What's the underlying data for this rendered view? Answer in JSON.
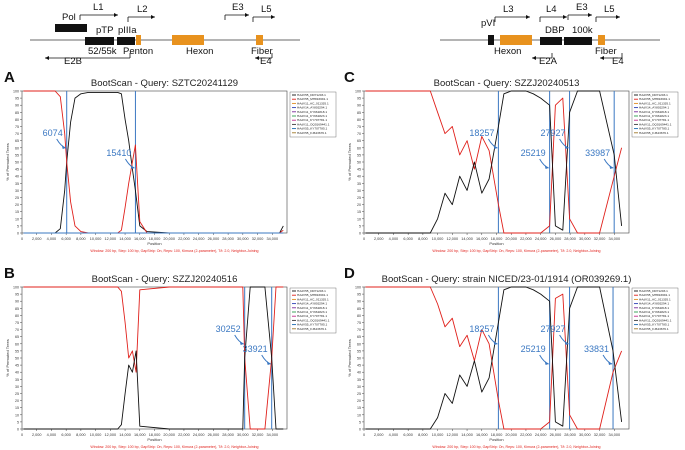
{
  "genome_maps": [
    {
      "labels": [
        {
          "text": "Pol",
          "x": 62,
          "y": 20
        },
        {
          "text": "L1",
          "x": 93,
          "y": 10
        },
        {
          "text": "L2",
          "x": 137,
          "y": 12
        },
        {
          "text": "pTP",
          "x": 96,
          "y": 33
        },
        {
          "text": "pIIIa",
          "x": 118,
          "y": 33
        },
        {
          "text": "52/55k",
          "x": 88,
          "y": 54
        },
        {
          "text": "Penton",
          "x": 123,
          "y": 54
        },
        {
          "text": "Hexon",
          "x": 186,
          "y": 54
        },
        {
          "text": "E2B",
          "x": 64,
          "y": 64
        },
        {
          "text": "E3",
          "x": 232,
          "y": 10
        },
        {
          "text": "L5",
          "x": 261,
          "y": 12
        },
        {
          "text": "Fiber",
          "x": 251,
          "y": 54
        },
        {
          "text": "E4",
          "x": 260,
          "y": 64
        }
      ]
    },
    {
      "labels": [
        {
          "text": "pVI",
          "x": 481,
          "y": 26
        },
        {
          "text": "L3",
          "x": 503,
          "y": 12
        },
        {
          "text": "L4",
          "x": 546,
          "y": 12
        },
        {
          "text": "E3",
          "x": 576,
          "y": 10
        },
        {
          "text": "L5",
          "x": 604,
          "y": 12
        },
        {
          "text": "DBP",
          "x": 545,
          "y": 33
        },
        {
          "text": "100k",
          "x": 572,
          "y": 33
        },
        {
          "text": "Hexon",
          "x": 494,
          "y": 54
        },
        {
          "text": "E2A",
          "x": 539,
          "y": 64
        },
        {
          "text": "Fiber",
          "x": 595,
          "y": 54
        },
        {
          "text": "E4",
          "x": 612,
          "y": 64
        }
      ]
    }
  ],
  "chart_data": [
    {
      "type": "line",
      "panel_letter": "A",
      "title": "BootScan - Query: SZTC20241129",
      "xlabel": "Position",
      "ylabel": "% of Permuted Trees",
      "xlim": [
        0,
        36000
      ],
      "ylim": [
        0,
        100
      ],
      "x_ticks": [
        "0",
        "2,000",
        "4,000",
        "6,000",
        "8,000",
        "10,000",
        "12,000",
        "14,000",
        "16,000",
        "18,000",
        "20,000",
        "22,000",
        "24,000",
        "26,000",
        "28,000",
        "30,000",
        "32,000",
        "34,000"
      ],
      "y_ticks": [
        "0",
        "5",
        "10",
        "15",
        "20",
        "25",
        "30",
        "35",
        "40",
        "45",
        "50",
        "55",
        "60",
        "65",
        "70",
        "75",
        "80",
        "85",
        "90",
        "95",
        "100"
      ],
      "breakpoints": [
        6074,
        15410
      ],
      "annotations": [
        "6074",
        "15410"
      ],
      "footer": "Window: 200 bp, Step: 100 bp, GapStrip: On, Reps: 100, Kimura (2-parameter), T/t: 2.0, Neighbor-Joining",
      "legend": [
        "HAdV55_DR71203.1",
        "HAdV55_MH816691.1",
        "HAdV11_AC_011335.1",
        "HAdV14_AY803294.1",
        "HAdV11_KY661818.1",
        "HAdV11_KY661823.1",
        "HAdV11_KY707781.1",
        "HAdV11_OQ0169441.1",
        "HAdV55_KY707785.1",
        "HAdV55_FJ643676.1"
      ],
      "series": [
        {
          "name": "black",
          "x": [
            200,
            1500,
            3000,
            4500,
            5200,
            5800,
            6074,
            6600,
            7200,
            8000,
            9000,
            10000,
            11000,
            12000,
            13000,
            13500,
            14000,
            14500,
            15000,
            15410,
            16000,
            17000,
            20000,
            25000,
            30000,
            35000,
            35500
          ],
          "y": [
            0,
            0,
            0,
            0,
            3,
            30,
            50,
            78,
            95,
            98,
            99,
            99,
            99,
            99,
            99,
            98,
            80,
            65,
            45,
            30,
            5,
            1,
            0,
            0,
            0,
            0,
            5
          ]
        },
        {
          "name": "red",
          "x": [
            200,
            1500,
            3000,
            4500,
            5200,
            5800,
            6074,
            6600,
            7200,
            8000,
            9000,
            10000,
            11000,
            12000,
            13000,
            13500,
            14000,
            14500,
            15000,
            15410,
            16000,
            17000,
            20000,
            25000,
            30000,
            35000,
            35500
          ],
          "y": [
            100,
            100,
            100,
            100,
            96,
            70,
            50,
            22,
            5,
            1,
            0,
            0,
            0,
            0,
            0,
            2,
            18,
            35,
            50,
            62,
            8,
            0,
            0,
            0,
            0,
            0,
            2
          ]
        },
        {
          "name": "blue",
          "x": [
            200,
            17000,
            24000,
            33000,
            35500
          ],
          "y": [
            0,
            0,
            0,
            0,
            0
          ]
        }
      ]
    },
    {
      "type": "line",
      "panel_letter": "B",
      "title": "BootScan - Query: SZZJ20240516",
      "xlabel": "Position",
      "ylabel": "% of Permuted Trees",
      "xlim": [
        0,
        36000
      ],
      "ylim": [
        0,
        100
      ],
      "x_ticks": [
        "0",
        "2,000",
        "4,000",
        "6,000",
        "8,000",
        "10,000",
        "12,000",
        "14,000",
        "16,000",
        "18,000",
        "20,000",
        "22,000",
        "24,000",
        "26,000",
        "28,000",
        "30,000",
        "32,000",
        "34,000"
      ],
      "y_ticks": [
        "0",
        "5",
        "10",
        "15",
        "20",
        "25",
        "30",
        "35",
        "40",
        "45",
        "50",
        "55",
        "60",
        "65",
        "70",
        "75",
        "80",
        "85",
        "90",
        "95",
        "100"
      ],
      "breakpoints": [
        30252,
        33921
      ],
      "annotations": [
        "30252",
        "33921"
      ],
      "footer": "Window: 200 bp, Step: 100 bp, GapStrip: On, Reps: 100, Kimura (2-parameter), T/t: 2.0, Neighbor-Joining",
      "legend": [
        "HAdV55_DR71203.1",
        "HAdV55_MH816691.1",
        "HAdV11_AC_011335.1",
        "HAdV14_AY803294.1",
        "HAdV11_KY661818.1",
        "HAdV11_KY661823.1",
        "HAdV11_KY707781.1",
        "HAdV11_OQ0169441.1",
        "HAdV55_KY707785.1",
        "HAdV55_FJ643676.1"
      ],
      "series": [
        {
          "name": "red",
          "x": [
            200,
            3000,
            6000,
            9000,
            11000,
            12000,
            13000,
            13500,
            14000,
            14500,
            15000,
            15500,
            16000,
            20000,
            25000,
            30000,
            30252,
            31000,
            32000,
            33000,
            33921,
            34500,
            35500
          ],
          "y": [
            100,
            100,
            100,
            100,
            100,
            100,
            100,
            97,
            75,
            50,
            55,
            40,
            98,
            100,
            100,
            100,
            50,
            0,
            0,
            0,
            50,
            100,
            100
          ]
        },
        {
          "name": "black",
          "x": [
            200,
            3000,
            6000,
            9000,
            11000,
            12000,
            13000,
            13500,
            14000,
            14500,
            15000,
            15500,
            16000,
            20000,
            25000,
            30000,
            30252,
            31000,
            32000,
            33000,
            33921,
            34500,
            35500
          ],
          "y": [
            0,
            0,
            0,
            0,
            0,
            0,
            0,
            3,
            25,
            45,
            40,
            55,
            2,
            0,
            0,
            0,
            50,
            100,
            100,
            100,
            50,
            0,
            0
          ]
        }
      ]
    },
    {
      "type": "line",
      "panel_letter": "C",
      "title": "BootScan - Query: SZZJ20240513",
      "xlabel": "Position",
      "ylabel": "% of Permuted Trees",
      "xlim": [
        0,
        36000
      ],
      "ylim": [
        0,
        100
      ],
      "x_ticks": [
        "0",
        "2,000",
        "4,000",
        "6,000",
        "8,000",
        "10,000",
        "12,000",
        "14,000",
        "16,000",
        "18,000",
        "20,000",
        "22,000",
        "24,000",
        "26,000",
        "28,000",
        "30,000",
        "32,000",
        "34,000"
      ],
      "y_ticks": [
        "0",
        "5",
        "10",
        "15",
        "20",
        "25",
        "30",
        "35",
        "40",
        "45",
        "50",
        "55",
        "60",
        "65",
        "70",
        "75",
        "80",
        "85",
        "90",
        "95",
        "100"
      ],
      "breakpoints": [
        18257,
        25219,
        27927,
        33987
      ],
      "annotations": [
        "18257",
        "25219",
        "27927",
        "33987"
      ],
      "footer": "Window: 200 bp, Step: 100 bp, GapStrip: On, Reps: 100, Kimura (2-parameter), T/t: 2.0, Neighbor-Joining",
      "legend": [
        "HAdV55_DR71203.1",
        "HAdV55_MH816691.1",
        "HAdV11_AC_011335.1",
        "HAdV14_AY803294.1",
        "HAdV11_KY661818.1",
        "HAdV11_KY661823.1",
        "HAdV11_KY707781.1",
        "HAdV11_OQ0169441.1",
        "HAdV55_KY707785.1",
        "HAdV55_FJ643676.1"
      ],
      "series": [
        {
          "name": "red",
          "x": [
            200,
            3000,
            6000,
            9000,
            10000,
            11000,
            12000,
            13000,
            14000,
            15000,
            16000,
            17000,
            18257,
            19000,
            20000,
            21000,
            22000,
            23000,
            24000,
            25219,
            26000,
            27000,
            27927,
            29000,
            30000,
            32000,
            33987,
            35000
          ],
          "y": [
            100,
            100,
            100,
            100,
            85,
            70,
            75,
            55,
            65,
            45,
            68,
            58,
            20,
            0,
            0,
            0,
            0,
            0,
            0,
            5,
            90,
            95,
            10,
            0,
            0,
            0,
            40,
            60
          ]
        },
        {
          "name": "black",
          "x": [
            200,
            3000,
            6000,
            9000,
            10000,
            11000,
            12000,
            13000,
            14000,
            15000,
            16000,
            17000,
            18257,
            19000,
            20000,
            21000,
            22000,
            23000,
            24000,
            25219,
            26000,
            27000,
            27927,
            29000,
            30000,
            32000,
            33987,
            35000
          ],
          "y": [
            0,
            0,
            0,
            0,
            10,
            28,
            20,
            40,
            30,
            50,
            28,
            38,
            75,
            98,
            100,
            100,
            100,
            98,
            95,
            90,
            5,
            2,
            85,
            100,
            100,
            100,
            55,
            5
          ]
        }
      ]
    },
    {
      "type": "line",
      "panel_letter": "D",
      "title": "BootScan - Query: strain NICED/23-01/1914 (OR039269.1)",
      "xlabel": "Position",
      "ylabel": "% of Permuted Trees",
      "xlim": [
        0,
        36000
      ],
      "ylim": [
        0,
        100
      ],
      "x_ticks": [
        "0",
        "2,000",
        "4,000",
        "6,000",
        "8,000",
        "10,000",
        "12,000",
        "14,000",
        "16,000",
        "18,000",
        "20,000",
        "22,000",
        "24,000",
        "26,000",
        "28,000",
        "30,000",
        "32,000",
        "34,000"
      ],
      "y_ticks": [
        "0",
        "5",
        "10",
        "15",
        "20",
        "25",
        "30",
        "35",
        "40",
        "45",
        "50",
        "55",
        "60",
        "65",
        "70",
        "75",
        "80",
        "85",
        "90",
        "95",
        "100"
      ],
      "breakpoints": [
        18257,
        25219,
        27927,
        33831
      ],
      "annotations": [
        "18257",
        "25219",
        "27927",
        "33831"
      ],
      "footer": "Window: 200 bp, Step: 100 bp, GapStrip: On, Reps: 100, Kimura (2-parameter), T/t: 2.0, Neighbor-Joining",
      "legend": [
        "HAdV55_DR71203.1",
        "HAdV55_MH816691.1",
        "HAdV11_AC_011335.1",
        "HAdV14_AY803294.1",
        "HAdV11_KY661818.1",
        "HAdV11_KY661823.1",
        "HAdV11_KY707781.1",
        "HAdV11_OQ0169441.1",
        "HAdV55_KY707785.1",
        "HAdV55_FJ643676.1"
      ],
      "series": [
        {
          "name": "red",
          "x": [
            200,
            3000,
            6000,
            9000,
            10000,
            11000,
            12000,
            13000,
            14000,
            15000,
            16000,
            17000,
            18257,
            19000,
            20000,
            21000,
            22000,
            23000,
            24000,
            25219,
            26000,
            27000,
            27927,
            29000,
            30000,
            32000,
            33831,
            35000
          ],
          "y": [
            100,
            100,
            100,
            100,
            88,
            72,
            78,
            58,
            66,
            48,
            70,
            60,
            20,
            0,
            0,
            0,
            0,
            0,
            0,
            5,
            92,
            95,
            10,
            0,
            0,
            0,
            40,
            55
          ]
        },
        {
          "name": "black",
          "x": [
            200,
            3000,
            6000,
            9000,
            10000,
            11000,
            12000,
            13000,
            14000,
            15000,
            16000,
            17000,
            18257,
            19000,
            20000,
            21000,
            22000,
            23000,
            24000,
            25219,
            26000,
            27000,
            27927,
            29000,
            30000,
            32000,
            33831,
            35000
          ],
          "y": [
            0,
            0,
            0,
            0,
            8,
            25,
            18,
            38,
            30,
            48,
            26,
            36,
            75,
            98,
            100,
            100,
            100,
            98,
            95,
            90,
            5,
            2,
            85,
            100,
            100,
            100,
            55,
            5
          ]
        }
      ]
    }
  ],
  "colors": {
    "red": "#e0201b",
    "black": "#111111",
    "blue": "#3b78c2",
    "orange": "#e8921e",
    "legend": [
      "#111111",
      "#e0201b",
      "#e08a1e",
      "#2b3fb5",
      "#7a2a9a",
      "#2a9a4a",
      "#c02a8a",
      "#3a3a3a",
      "#1a6ab0",
      "#a07a2a"
    ]
  }
}
